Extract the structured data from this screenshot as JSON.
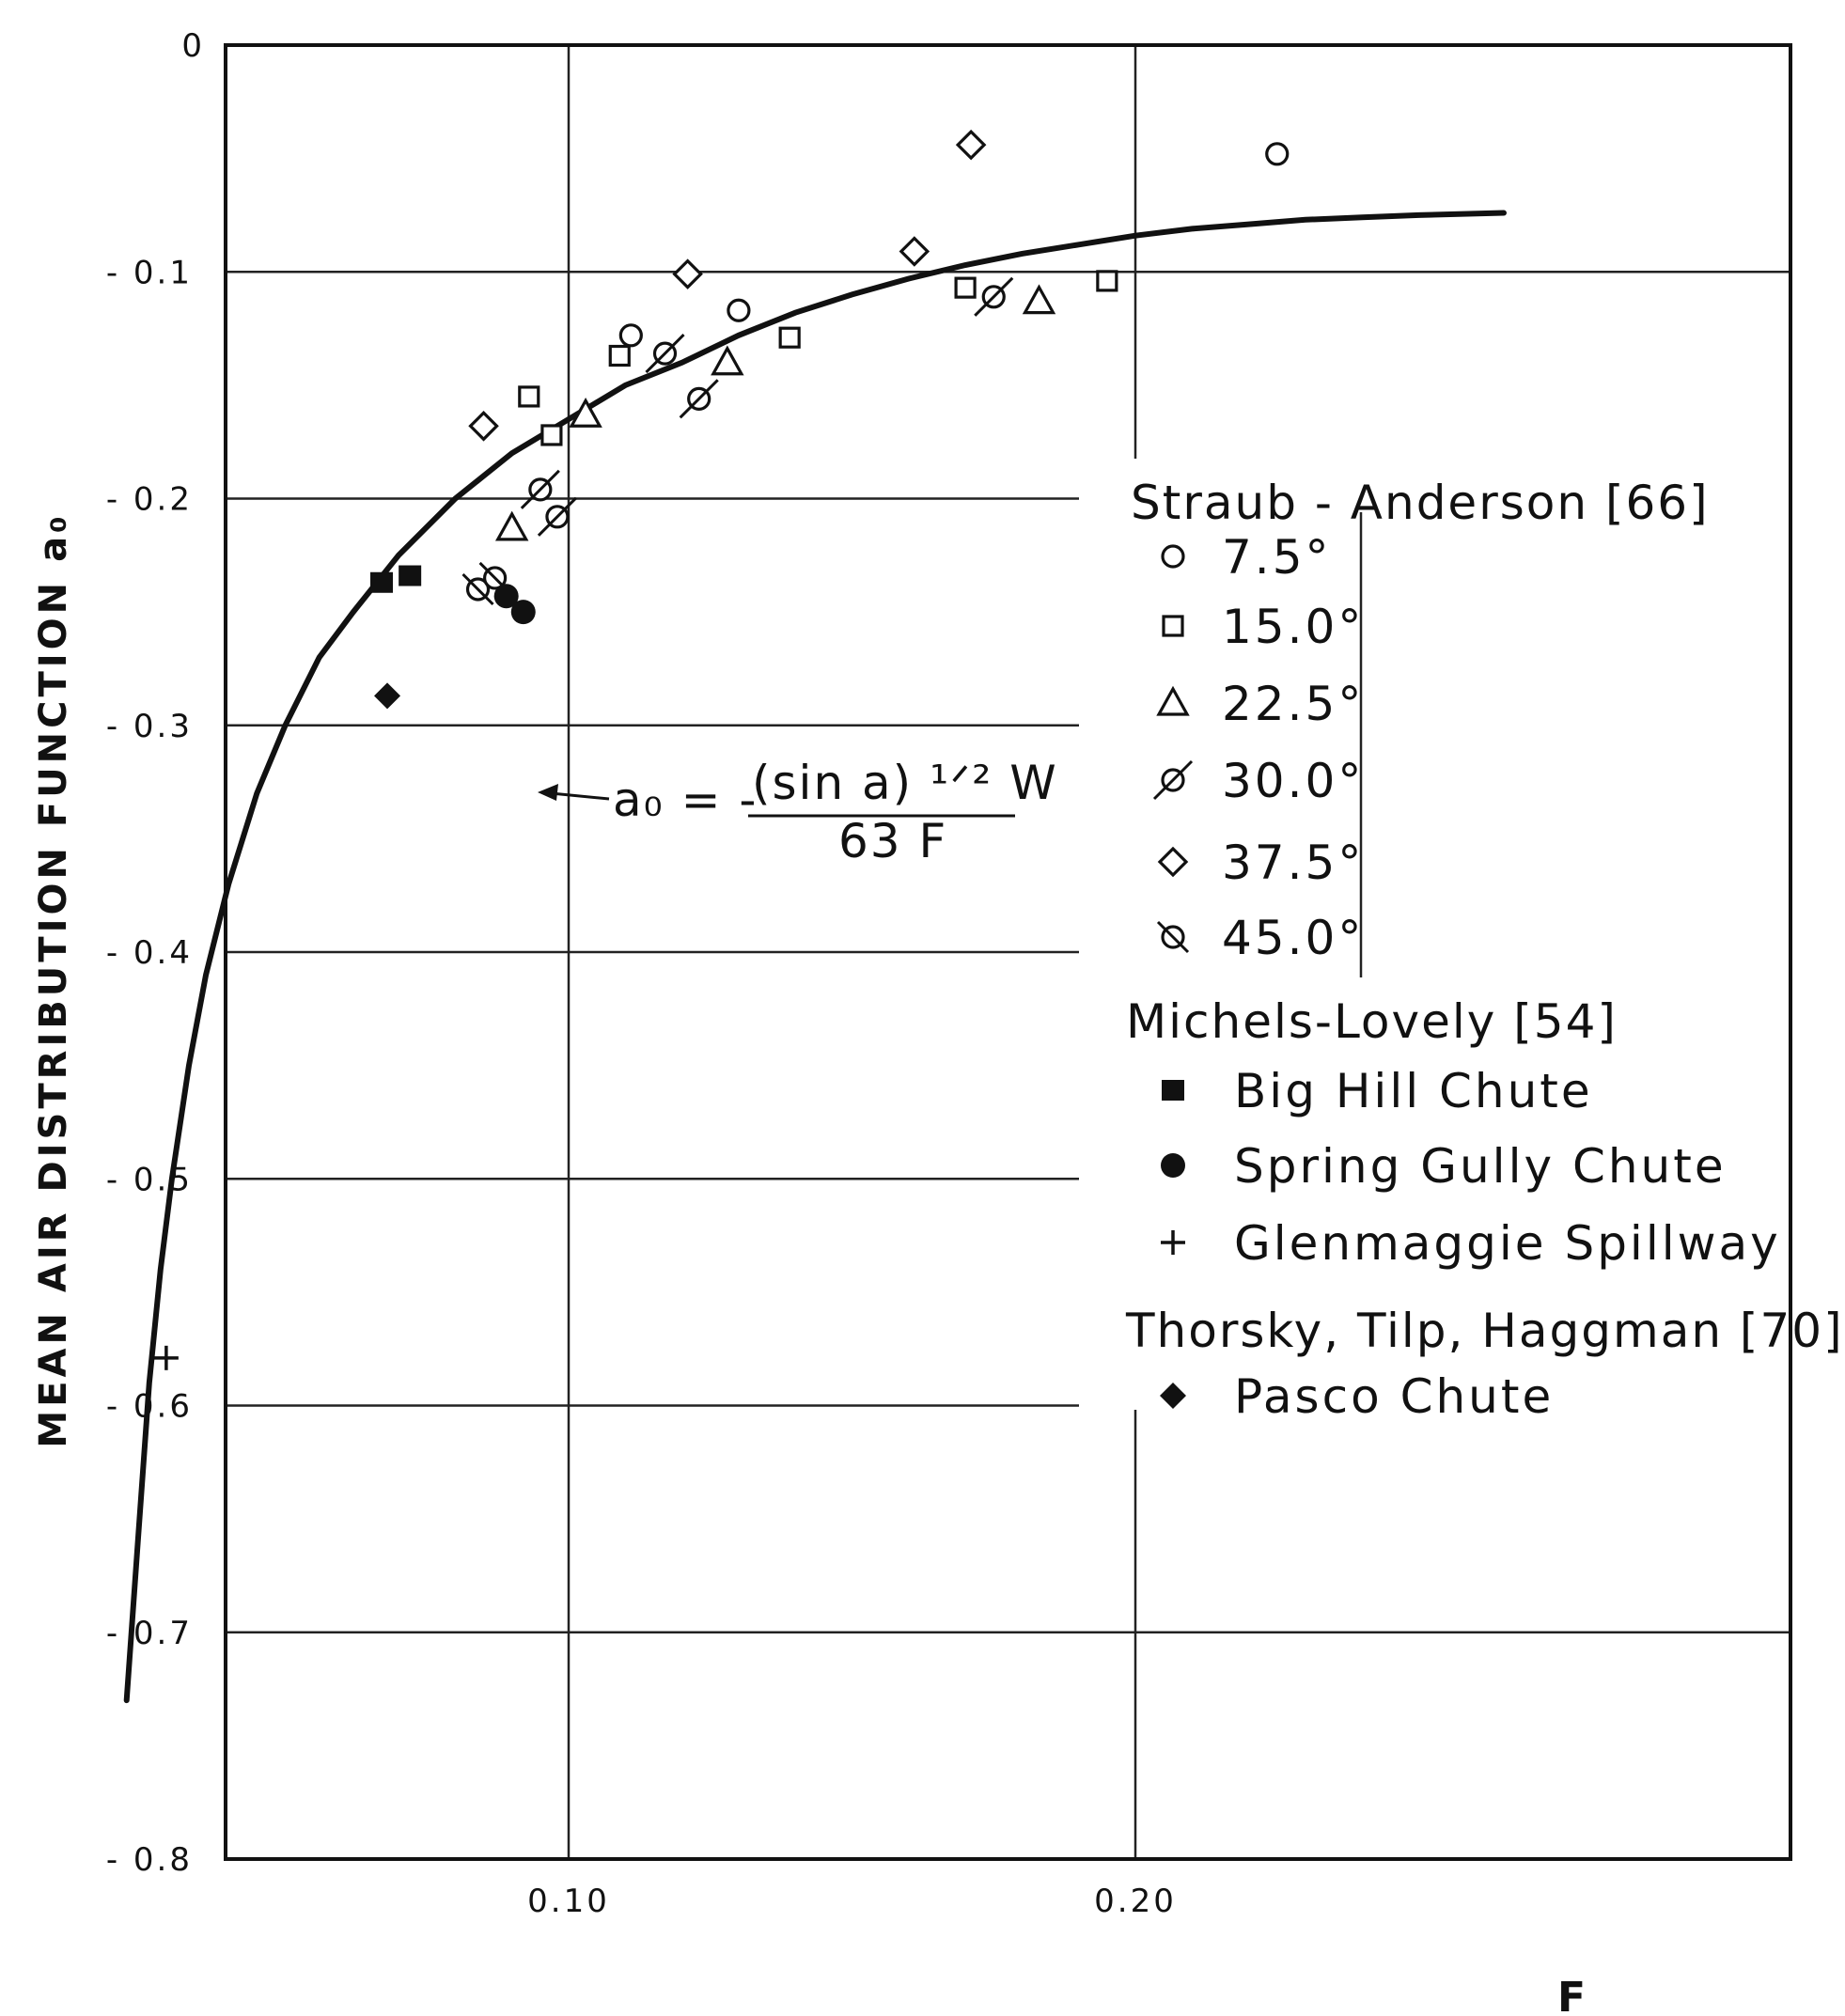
{
  "chart_data": {
    "type": "scatter",
    "title": "",
    "xlabel": "F",
    "ylabel": "MEAN AIR DISTRIBUTION FUNCTION a₀",
    "xlim": [
      0.0,
      0.28
    ],
    "ylim": [
      -0.8,
      0.0
    ],
    "x_ticks": [
      {
        "value": 0.1,
        "label": "0.10"
      },
      {
        "value": 0.2,
        "label": "0.20"
      }
    ],
    "y_ticks": [
      {
        "value": 0.0,
        "label": "0"
      },
      {
        "value": -0.1,
        "label": "- 0.1"
      },
      {
        "value": -0.2,
        "label": "- 0.2"
      },
      {
        "value": -0.3,
        "label": "- 0.3"
      },
      {
        "value": -0.4,
        "label": "- 0.4"
      },
      {
        "value": -0.5,
        "label": "- 0.5"
      },
      {
        "value": -0.6,
        "label": "- 0.6"
      },
      {
        "value": -0.7,
        "label": "- 0.7"
      },
      {
        "value": -0.8,
        "label": "- 0.8"
      }
    ],
    "grid": true,
    "curve": {
      "equation_lhs": "a₀ = -",
      "equation_numerator": "(sin a) ¹ᐟ² W",
      "equation_denominator": "63 F",
      "points": [
        [
          0.022,
          -0.73
        ],
        [
          0.024,
          -0.66
        ],
        [
          0.026,
          -0.59
        ],
        [
          0.028,
          -0.54
        ],
        [
          0.03,
          -0.5
        ],
        [
          0.033,
          -0.45
        ],
        [
          0.036,
          -0.41
        ],
        [
          0.04,
          -0.37
        ],
        [
          0.045,
          -0.33
        ],
        [
          0.05,
          -0.3
        ],
        [
          0.056,
          -0.27
        ],
        [
          0.062,
          -0.25
        ],
        [
          0.07,
          -0.225
        ],
        [
          0.08,
          -0.2
        ],
        [
          0.09,
          -0.18
        ],
        [
          0.1,
          -0.165
        ],
        [
          0.11,
          -0.15
        ],
        [
          0.12,
          -0.14
        ],
        [
          0.13,
          -0.128
        ],
        [
          0.14,
          -0.118
        ],
        [
          0.15,
          -0.11
        ],
        [
          0.16,
          -0.103
        ],
        [
          0.17,
          -0.097
        ],
        [
          0.18,
          -0.092
        ],
        [
          0.19,
          -0.088
        ],
        [
          0.2,
          -0.084
        ],
        [
          0.21,
          -0.081
        ],
        [
          0.22,
          -0.079
        ],
        [
          0.23,
          -0.077
        ],
        [
          0.24,
          -0.076
        ],
        [
          0.25,
          -0.075
        ],
        [
          0.265,
          -0.074
        ]
      ]
    },
    "legend": {
      "placement": "right",
      "groups": [
        {
          "heading": "Straub - Anderson  [66]",
          "entries": [
            {
              "marker": "open-circle",
              "label": "7.5°"
            },
            {
              "marker": "open-square",
              "label": "15.0°"
            },
            {
              "marker": "open-triangle",
              "label": "22.5°"
            },
            {
              "marker": "slashed-circle",
              "label": "30.0°"
            },
            {
              "marker": "open-diamond",
              "label": "37.5°"
            },
            {
              "marker": "backslashed-circle",
              "label": "45.0°"
            }
          ]
        },
        {
          "heading": "Michels-Lovely  [54]",
          "entries": [
            {
              "marker": "filled-square",
              "label": "Big Hill Chute"
            },
            {
              "marker": "filled-circle",
              "label": "Spring Gully Chute"
            },
            {
              "marker": "plus",
              "label": "Glenmaggie Spillway"
            }
          ]
        },
        {
          "heading": "Thorsky, Tilp, Haggman  [70]",
          "entries": [
            {
              "marker": "filled-diamond",
              "label": "Pasco Chute"
            }
          ]
        }
      ]
    },
    "series": [
      {
        "marker": "open-circle",
        "points": [
          [
            0.111,
            -0.128
          ],
          [
            0.13,
            -0.117
          ],
          [
            0.225,
            -0.048
          ]
        ]
      },
      {
        "marker": "open-square",
        "points": [
          [
            0.109,
            -0.137
          ],
          [
            0.093,
            -0.155
          ],
          [
            0.097,
            -0.172
          ],
          [
            0.139,
            -0.129
          ],
          [
            0.17,
            -0.107
          ],
          [
            0.195,
            -0.104
          ]
        ]
      },
      {
        "marker": "open-triangle",
        "points": [
          [
            0.103,
            -0.163
          ],
          [
            0.09,
            -0.213
          ],
          [
            0.128,
            -0.14
          ],
          [
            0.183,
            -0.113
          ]
        ]
      },
      {
        "marker": "slashed-circle",
        "points": [
          [
            0.095,
            -0.196
          ],
          [
            0.098,
            -0.208
          ],
          [
            0.117,
            -0.136
          ],
          [
            0.123,
            -0.156
          ],
          [
            0.175,
            -0.111
          ]
        ]
      },
      {
        "marker": "open-diamond",
        "points": [
          [
            0.085,
            -0.168
          ],
          [
            0.121,
            -0.101
          ],
          [
            0.161,
            -0.091
          ],
          [
            0.171,
            -0.044
          ]
        ]
      },
      {
        "marker": "backslashed-circle",
        "points": [
          [
            0.084,
            -0.24
          ],
          [
            0.087,
            -0.235
          ]
        ]
      },
      {
        "marker": "filled-square",
        "points": [
          [
            0.067,
            -0.237
          ],
          [
            0.072,
            -0.234
          ]
        ]
      },
      {
        "marker": "filled-circle",
        "points": [
          [
            0.089,
            -0.243
          ],
          [
            0.092,
            -0.25
          ]
        ]
      },
      {
        "marker": "plus",
        "points": [
          [
            0.029,
            -0.579
          ]
        ]
      },
      {
        "marker": "filled-diamond",
        "points": [
          [
            0.068,
            -0.287
          ]
        ]
      }
    ]
  }
}
